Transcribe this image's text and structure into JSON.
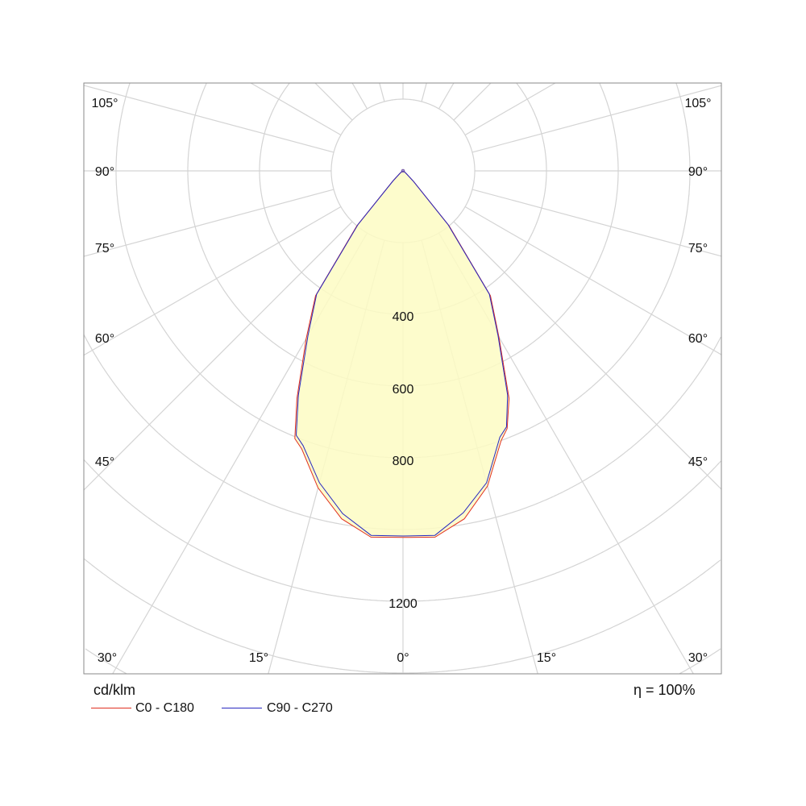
{
  "chart_data": {
    "type": "polar",
    "unit_label": "cd/klm",
    "efficiency_label": "η = 100%",
    "radial_ticks": [
      200,
      400,
      600,
      800,
      1000,
      1200,
      1400
    ],
    "radial_tick_labels": [
      "400",
      "600",
      "800",
      "1200"
    ],
    "angle_labels_bottom": [
      "30°",
      "15°",
      "0°",
      "15°",
      "30°"
    ],
    "angle_labels_side": [
      "105°",
      "90°",
      "75°",
      "60°",
      "45°"
    ],
    "grid": true,
    "legend_placement": "bottom-left",
    "angles": [
      -90,
      -80,
      -70,
      -60,
      -50,
      -45,
      -40,
      -35,
      -30,
      -25,
      -22,
      -20,
      -15,
      -10,
      -5,
      0,
      5,
      10,
      15,
      20,
      22,
      25,
      30,
      35,
      40,
      45,
      50,
      60,
      70,
      80,
      90
    ],
    "series": [
      {
        "name": "C0 - C180",
        "color": "#e03020",
        "values": [
          0,
          1,
          2,
          4,
          12,
          40,
          200,
          425,
          540,
          700,
          805,
          825,
          915,
          985,
          1025,
          1022,
          1025,
          985,
          910,
          800,
          775,
          700,
          535,
          425,
          200,
          42,
          12,
          4,
          2,
          1,
          0
        ]
      },
      {
        "name": "C90 - C270",
        "color": "#2828c0",
        "values": [
          0,
          1,
          2,
          4,
          12,
          38,
          195,
          420,
          530,
          690,
          795,
          815,
          900,
          970,
          1020,
          1018,
          1020,
          968,
          900,
          790,
          770,
          690,
          530,
          420,
          195,
          40,
          12,
          4,
          2,
          1,
          0
        ]
      }
    ],
    "fill_color": "#fdfcc3"
  }
}
